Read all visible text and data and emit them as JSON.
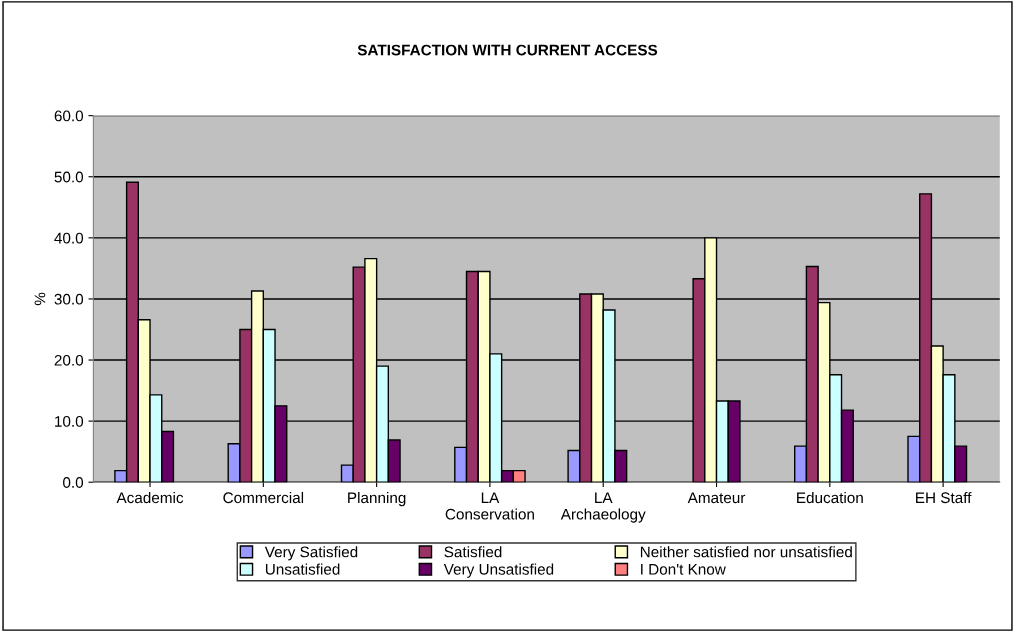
{
  "chart_data": {
    "type": "bar",
    "title": "SATISFACTION WITH CURRENT ACCESS",
    "ylabel": "%",
    "categories": [
      "Academic",
      "Commercial",
      "Planning",
      "LA\nConservation",
      "LA\nArchaeology",
      "Amateur",
      "Education",
      "EH Staff"
    ],
    "series": [
      {
        "name": "Very Satisfied",
        "color": "#9999ff",
        "values": [
          1.9,
          6.3,
          2.8,
          5.7,
          5.2,
          null,
          5.9,
          7.5
        ]
      },
      {
        "name": "Satisfied",
        "color": "#993366",
        "values": [
          49.1,
          25.0,
          35.2,
          34.5,
          30.8,
          33.3,
          35.3,
          47.2
        ]
      },
      {
        "name": "Neither satisfied nor unsatisfied",
        "color": "#ffffcc",
        "values": [
          26.6,
          31.3,
          36.6,
          34.5,
          30.8,
          40.0,
          29.4,
          22.3
        ]
      },
      {
        "name": "Unsatisfied",
        "color": "#ccffff",
        "values": [
          14.3,
          25.0,
          19.0,
          21.0,
          28.2,
          13.3,
          17.6,
          17.6
        ]
      },
      {
        "name": "Very Unsatisfied",
        "color": "#660066",
        "values": [
          8.3,
          12.5,
          6.9,
          1.9,
          5.2,
          13.3,
          11.8,
          5.9
        ]
      },
      {
        "name": "I Don't Know",
        "color": "#ff8080",
        "values": [
          null,
          null,
          null,
          1.9,
          null,
          null,
          null,
          null
        ]
      }
    ],
    "ylim": [
      0,
      60
    ],
    "yticks": [
      {
        "value": 0,
        "label": "0.0"
      },
      {
        "value": 10,
        "label": "10.0"
      },
      {
        "value": 20,
        "label": "20.0"
      },
      {
        "value": 30,
        "label": "30.0"
      },
      {
        "value": 40,
        "label": "40.0"
      },
      {
        "value": 50,
        "label": "50.0"
      },
      {
        "value": 60,
        "label": "60.0"
      }
    ],
    "grid": "y",
    "legend": "bottom"
  }
}
